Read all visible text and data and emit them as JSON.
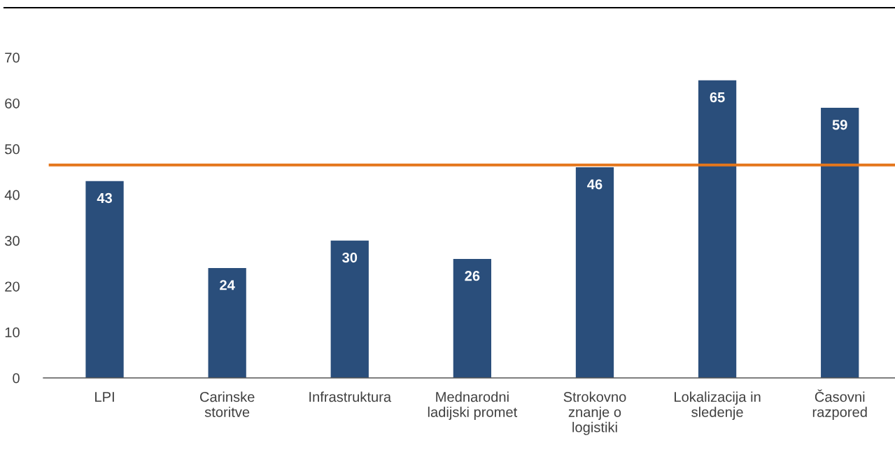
{
  "chart_data": {
    "type": "bar",
    "categories": [
      "LPI",
      "Carinske\nstoritve",
      "Infrastruktura",
      "Mednarodni\nladijski promet",
      "Strokovno\nznanje o\nlogistiki",
      "Lokalizacija in\nsledenje",
      "Časovni\nrazpored"
    ],
    "values": [
      43,
      24,
      30,
      26,
      46,
      65,
      59
    ],
    "color": "#2a4e7b",
    "data_labels": true,
    "ylim": [
      0,
      70
    ],
    "yticks": [
      0,
      10,
      20,
      30,
      40,
      50,
      60,
      70
    ],
    "ref_lines": [
      {
        "axis": "y",
        "value": 46.5,
        "color": "#e4761b",
        "line_style": "solid"
      }
    ],
    "grid": false,
    "legend": false
  }
}
